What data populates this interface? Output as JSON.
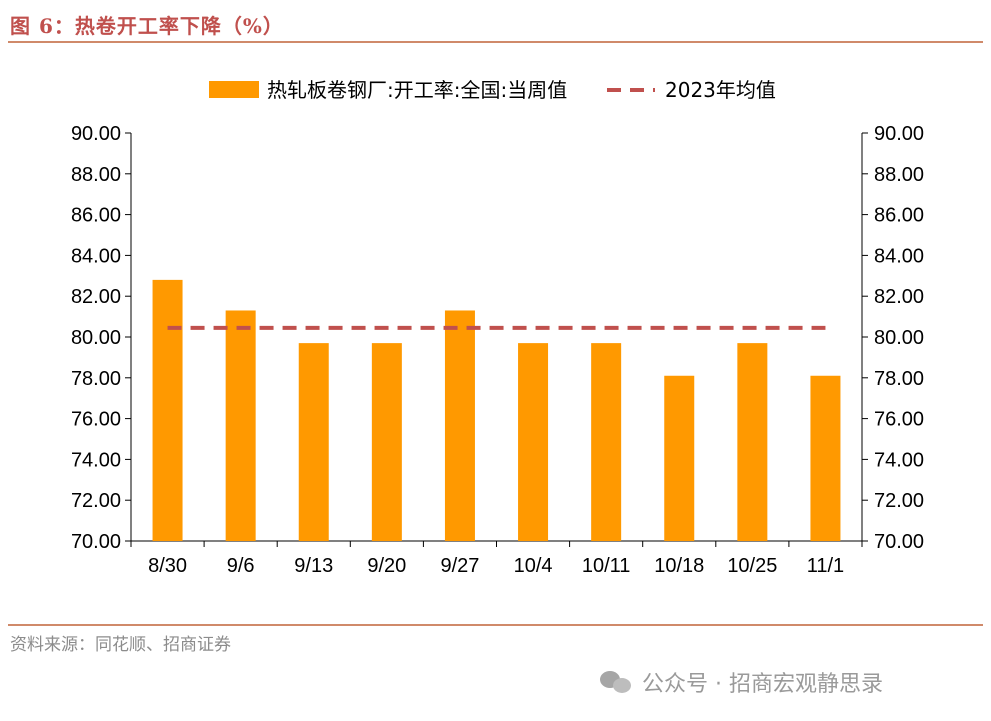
{
  "figure": {
    "title": "图 6：热卷开工率下降（%）",
    "source": "资料来源：同花顺、招商证券",
    "watermark": "公众号 · 招商宏观静思录"
  },
  "chart_data": {
    "type": "bar",
    "categories": [
      "8/30",
      "9/6",
      "9/13",
      "9/20",
      "9/27",
      "10/4",
      "10/11",
      "10/18",
      "10/25",
      "11/1"
    ],
    "series": [
      {
        "name": "热轧板卷钢厂:开工率:全国:当周值",
        "type": "bar",
        "color": "#ff9900",
        "values": [
          82.8,
          81.3,
          79.7,
          79.7,
          81.3,
          79.7,
          79.7,
          78.1,
          79.7,
          78.1
        ]
      },
      {
        "name": "2023年均值",
        "type": "line",
        "style": "dashed",
        "color": "#c0504d",
        "values": [
          80.45,
          80.45,
          80.45,
          80.45,
          80.45,
          80.45,
          80.45,
          80.45,
          80.45,
          80.45
        ]
      }
    ],
    "ylim": [
      70,
      90
    ],
    "y_ticks": [
      "70.00",
      "72.00",
      "74.00",
      "76.00",
      "78.00",
      "80.00",
      "82.00",
      "84.00",
      "86.00",
      "88.00",
      "90.00"
    ],
    "y_ticks_right": [
      "70.00",
      "72.00",
      "74.00",
      "76.00",
      "78.00",
      "80.00",
      "82.00",
      "84.00",
      "86.00",
      "88.00",
      "90.00"
    ],
    "grid": false,
    "legend_position": "top-center"
  }
}
